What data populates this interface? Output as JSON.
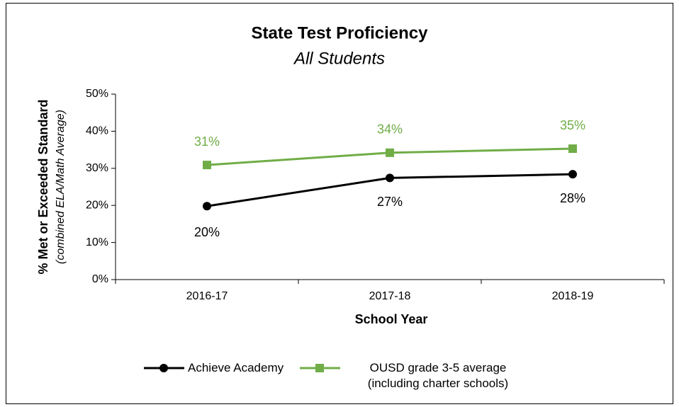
{
  "chart_data": {
    "type": "line",
    "title": "State Test Proficiency",
    "subtitle": "All Students",
    "xlabel": "School Year",
    "ylabel": "% Met or Exceeded Standard",
    "ylabel_note": "(combined ELA/Math Average)",
    "categories": [
      "2016-17",
      "2017-18",
      "2018-19"
    ],
    "series": [
      {
        "name": "Achieve Academy",
        "color": "#000000",
        "marker": "circle",
        "label_position": "below",
        "values": [
          19.8,
          27.4,
          28.4
        ],
        "value_labels": [
          "20%",
          "27%",
          "28%"
        ]
      },
      {
        "name": "OUSD grade 3-5 average (including charter schools)",
        "color": "#70ad47",
        "marker": "square",
        "label_position": "above",
        "values": [
          30.9,
          34.2,
          35.3
        ],
        "value_labels": [
          "31%",
          "34%",
          "35%"
        ]
      }
    ],
    "ylim": [
      0,
      50
    ],
    "yticks": [
      {
        "value": 0,
        "label": "0%"
      },
      {
        "value": 10,
        "label": "10%"
      },
      {
        "value": 20,
        "label": "20%"
      },
      {
        "value": 30,
        "label": "30%"
      },
      {
        "value": 40,
        "label": "40%"
      },
      {
        "value": 50,
        "label": "50%"
      }
    ],
    "grid": false,
    "legend": "bottom"
  }
}
